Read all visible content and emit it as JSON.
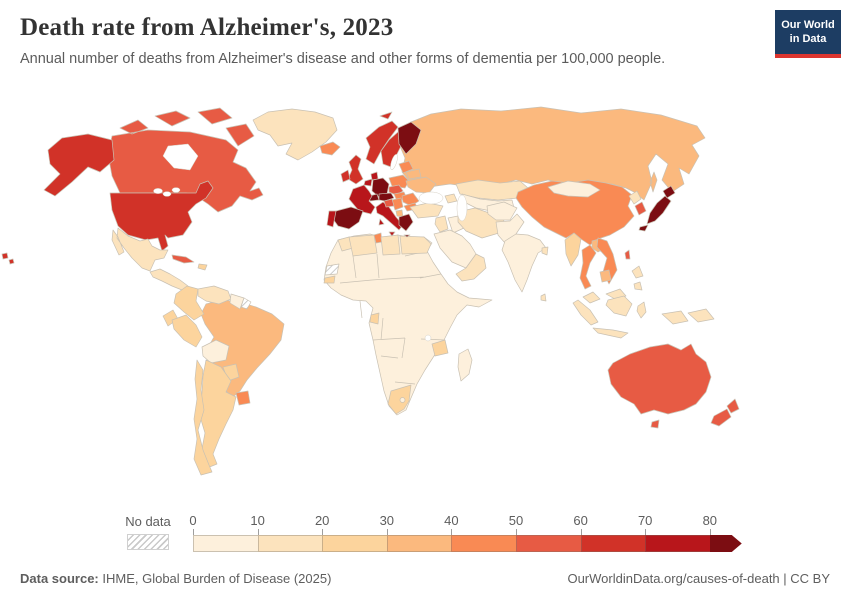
{
  "header": {
    "title": "Death rate from Alzheimer's, 2023",
    "subtitle": "Annual number of deaths from Alzheimer's disease and other forms of dementia per 100,000 people."
  },
  "logo": {
    "line1": "Our World",
    "line2": "in Data",
    "bg": "#1d3d63",
    "bar": "#dc352f"
  },
  "legend": {
    "no_data_label": "No data",
    "ticks": [
      "0",
      "10",
      "20",
      "30",
      "40",
      "50",
      "60",
      "70",
      "80"
    ],
    "bins": [
      {
        "range": "0-10",
        "color": "#fdf0dc"
      },
      {
        "range": "10-20",
        "color": "#fce3bd"
      },
      {
        "range": "20-30",
        "color": "#fcd49d"
      },
      {
        "range": "30-40",
        "color": "#fbb97e"
      },
      {
        "range": "40-50",
        "color": "#f98a54"
      },
      {
        "range": "50-60",
        "color": "#e75b44"
      },
      {
        "range": "60-70",
        "color": "#d13228"
      },
      {
        "range": "70-80",
        "color": "#b8161b"
      },
      {
        "range": "80+",
        "color": "#7c0d12"
      }
    ]
  },
  "footer": {
    "source_label": "Data source:",
    "source": "IHME, Global Burden of Disease (2025)",
    "credit": "OurWorldinData.org/causes-of-death | CC BY"
  },
  "chart_data": {
    "type": "heatmap",
    "subtype": "world-choropleth",
    "title": "Death rate from Alzheimer's, 2023",
    "unit": "deaths per 100,000 people",
    "year": "2023",
    "legend_bins": [
      "0-10",
      "10-20",
      "20-30",
      "30-40",
      "40-50",
      "50-60",
      "60-70",
      "70-80",
      "80+"
    ],
    "no_data_regions": [
      "Western Sahara",
      "French Guiana"
    ],
    "regions": {
      "greenland": {
        "label": "Greenland",
        "range": "10-20",
        "color": "#fce3bd"
      },
      "canada": {
        "label": "Canada",
        "range": "50-60",
        "color": "#e75b44"
      },
      "united_states": {
        "label": "United States",
        "range": "60-70",
        "color": "#d13228"
      },
      "mexico": {
        "label": "Mexico",
        "range": "10-20",
        "color": "#fce3bd"
      },
      "central_america": {
        "label": "Central America",
        "range": "10-20",
        "color": "#fce3bd"
      },
      "cuba": {
        "label": "Cuba",
        "range": "50-60",
        "color": "#e75b44"
      },
      "hispaniola": {
        "label": "Hispaniola",
        "range": "20-30",
        "color": "#fcd49d"
      },
      "colombia": {
        "label": "Colombia",
        "range": "20-30",
        "color": "#fcd49d"
      },
      "venezuela": {
        "label": "Venezuela",
        "range": "10-20",
        "color": "#fce3bd"
      },
      "guyana_suriname": {
        "label": "Guyana & Suriname",
        "range": "0-10",
        "color": "#fdf0dc"
      },
      "ecuador": {
        "label": "Ecuador",
        "range": "20-30",
        "color": "#fcd49d"
      },
      "peru": {
        "label": "Peru",
        "range": "20-30",
        "color": "#fcd49d"
      },
      "brazil": {
        "label": "Brazil",
        "range": "30-40",
        "color": "#fbb97e"
      },
      "bolivia": {
        "label": "Bolivia",
        "range": "0-10",
        "color": "#fdf0dc"
      },
      "paraguay": {
        "label": "Paraguay",
        "range": "20-30",
        "color": "#fcd49d"
      },
      "uruguay": {
        "label": "Uruguay",
        "range": "40-50",
        "color": "#f98a54"
      },
      "argentina": {
        "label": "Argentina",
        "range": "20-30",
        "color": "#fcd49d"
      },
      "chile": {
        "label": "Chile",
        "range": "20-30",
        "color": "#fcd49d"
      },
      "iceland": {
        "label": "Iceland",
        "range": "40-50",
        "color": "#f98a54"
      },
      "norway": {
        "label": "Norway",
        "range": "60-70",
        "color": "#d13228"
      },
      "sweden": {
        "label": "Sweden",
        "range": "60-70",
        "color": "#d13228"
      },
      "finland": {
        "label": "Finland",
        "range": "80+",
        "color": "#7c0d12"
      },
      "denmark": {
        "label": "Denmark",
        "range": "70-80",
        "color": "#b8161b"
      },
      "united_kingdom": {
        "label": "United Kingdom",
        "range": "60-70",
        "color": "#d13228"
      },
      "ireland": {
        "label": "Ireland",
        "range": "60-70",
        "color": "#d13228"
      },
      "benelux": {
        "label": "Netherlands & Belgium",
        "range": "70-80",
        "color": "#b8161b"
      },
      "germany": {
        "label": "Germany",
        "range": "80+",
        "color": "#7c0d12"
      },
      "france": {
        "label": "France",
        "range": "70-80",
        "color": "#b8161b"
      },
      "spain": {
        "label": "Spain",
        "range": "80+",
        "color": "#7c0d12"
      },
      "portugal": {
        "label": "Portugal",
        "range": "70-80",
        "color": "#b8161b"
      },
      "italy": {
        "label": "Italy",
        "range": "70-80",
        "color": "#b8161b"
      },
      "switzerland": {
        "label": "Switzerland",
        "range": "80+",
        "color": "#7c0d12"
      },
      "austria": {
        "label": "Austria",
        "range": "80+",
        "color": "#7c0d12"
      },
      "czechia": {
        "label": "Czechia",
        "range": "50-60",
        "color": "#e75b44"
      },
      "poland": {
        "label": "Poland",
        "range": "40-50",
        "color": "#f98a54"
      },
      "hungary": {
        "label": "Hungary",
        "range": "40-50",
        "color": "#f98a54"
      },
      "baltics": {
        "label": "Baltic states",
        "range": "40-50",
        "color": "#f98a54"
      },
      "belarus": {
        "label": "Belarus",
        "range": "30-40",
        "color": "#fbb97e"
      },
      "ukraine": {
        "label": "Ukraine",
        "range": "30-40",
        "color": "#fbb97e"
      },
      "romania": {
        "label": "Romania",
        "range": "40-50",
        "color": "#f98a54"
      },
      "bulgaria": {
        "label": "Bulgaria",
        "range": "40-50",
        "color": "#f98a54"
      },
      "serbia_bosnia": {
        "label": "Serbia & Bosnia",
        "range": "40-50",
        "color": "#f98a54"
      },
      "croatia_slovenia": {
        "label": "Croatia & Slovenia",
        "range": "50-60",
        "color": "#e75b44"
      },
      "albania_macedonia": {
        "label": "Albania & N. Macedonia",
        "range": "30-40",
        "color": "#fbb97e"
      },
      "greece": {
        "label": "Greece",
        "range": "80+",
        "color": "#7c0d12"
      },
      "russia": {
        "label": "Russia",
        "range": "30-40",
        "color": "#fbb97e"
      },
      "kazakhstan": {
        "label": "Kazakhstan",
        "range": "10-20",
        "color": "#fce3bd"
      },
      "central_asia": {
        "label": "Central Asia",
        "range": "0-10",
        "color": "#fdf0dc"
      },
      "caucasus": {
        "label": "Caucasus",
        "range": "10-20",
        "color": "#fce3bd"
      },
      "turkey": {
        "label": "Turkey",
        "range": "10-20",
        "color": "#fce3bd"
      },
      "levant": {
        "label": "Levant",
        "range": "10-20",
        "color": "#fce3bd"
      },
      "iraq": {
        "label": "Iraq",
        "range": "0-10",
        "color": "#fdf0dc"
      },
      "iran": {
        "label": "Iran",
        "range": "10-20",
        "color": "#fce3bd"
      },
      "saudi_arabia": {
        "label": "Saudi Arabia",
        "range": "0-10",
        "color": "#fdf0dc"
      },
      "oman_yemen": {
        "label": "Oman & Yemen",
        "range": "10-20",
        "color": "#fce3bd"
      },
      "morocco": {
        "label": "Morocco",
        "range": "10-20",
        "color": "#fce3bd"
      },
      "algeria": {
        "label": "Algeria",
        "range": "10-20",
        "color": "#fce3bd"
      },
      "tunisia": {
        "label": "Tunisia",
        "range": "40-50",
        "color": "#f98a54"
      },
      "libya": {
        "label": "Libya",
        "range": "10-20",
        "color": "#fce3bd"
      },
      "egypt": {
        "label": "Egypt",
        "range": "10-20",
        "color": "#fce3bd"
      },
      "senegal": {
        "label": "Senegal",
        "range": "20-30",
        "color": "#fcd49d"
      },
      "gabon": {
        "label": "Gabon",
        "range": "20-30",
        "color": "#fcd49d"
      },
      "tanzania": {
        "label": "Tanzania",
        "range": "20-30",
        "color": "#fcd49d"
      },
      "south_africa": {
        "label": "South Africa",
        "range": "20-30",
        "color": "#fcd49d"
      },
      "lesotho": {
        "label": "Lesotho",
        "range": "0-10",
        "color": "#fdf0dc"
      },
      "madagascar": {
        "label": "Madagascar",
        "range": "0-10",
        "color": "#fdf0dc"
      },
      "africa_other": {
        "label": "Africa (most countries)",
        "range": "0-10",
        "color": "#fdf0dc"
      },
      "afghanistan": {
        "label": "Afghanistan",
        "range": "0-10",
        "color": "#fdf0dc"
      },
      "pakistan": {
        "label": "Pakistan",
        "range": "0-10",
        "color": "#fdf0dc"
      },
      "india": {
        "label": "India",
        "range": "0-10",
        "color": "#fdf0dc"
      },
      "sri_lanka": {
        "label": "Sri Lanka",
        "range": "10-20",
        "color": "#fce3bd"
      },
      "bangladesh": {
        "label": "Bangladesh",
        "range": "10-20",
        "color": "#fce3bd"
      },
      "china": {
        "label": "China",
        "range": "40-50",
        "color": "#f98a54"
      },
      "mongolia": {
        "label": "Mongolia",
        "range": "0-10",
        "color": "#fdf0dc"
      },
      "north_korea": {
        "label": "North Korea",
        "range": "10-20",
        "color": "#fce3bd"
      },
      "south_korea": {
        "label": "South Korea",
        "range": "50-60",
        "color": "#e75b44"
      },
      "japan": {
        "label": "Japan",
        "range": "80+",
        "color": "#7c0d12"
      },
      "taiwan": {
        "label": "Taiwan",
        "range": "50-60",
        "color": "#e75b44"
      },
      "myanmar": {
        "label": "Myanmar",
        "range": "20-30",
        "color": "#fcd49d"
      },
      "thailand": {
        "label": "Thailand",
        "range": "40-50",
        "color": "#f98a54"
      },
      "laos": {
        "label": "Laos",
        "range": "30-40",
        "color": "#fbb97e"
      },
      "vietnam": {
        "label": "Vietnam",
        "range": "40-50",
        "color": "#f98a54"
      },
      "cambodia": {
        "label": "Cambodia",
        "range": "30-40",
        "color": "#fbb97e"
      },
      "malaysia": {
        "label": "Malaysia",
        "range": "10-20",
        "color": "#fce3bd"
      },
      "indonesia": {
        "label": "Indonesia",
        "range": "10-20",
        "color": "#fce3bd"
      },
      "philippines": {
        "label": "Philippines",
        "range": "10-20",
        "color": "#fce3bd"
      },
      "papua_new_guinea": {
        "label": "Papua New Guinea",
        "range": "10-20",
        "color": "#fce3bd"
      },
      "australia": {
        "label": "Australia",
        "range": "50-60",
        "color": "#e75b44"
      },
      "new_zealand": {
        "label": "New Zealand",
        "range": "50-60",
        "color": "#e75b44"
      }
    }
  }
}
